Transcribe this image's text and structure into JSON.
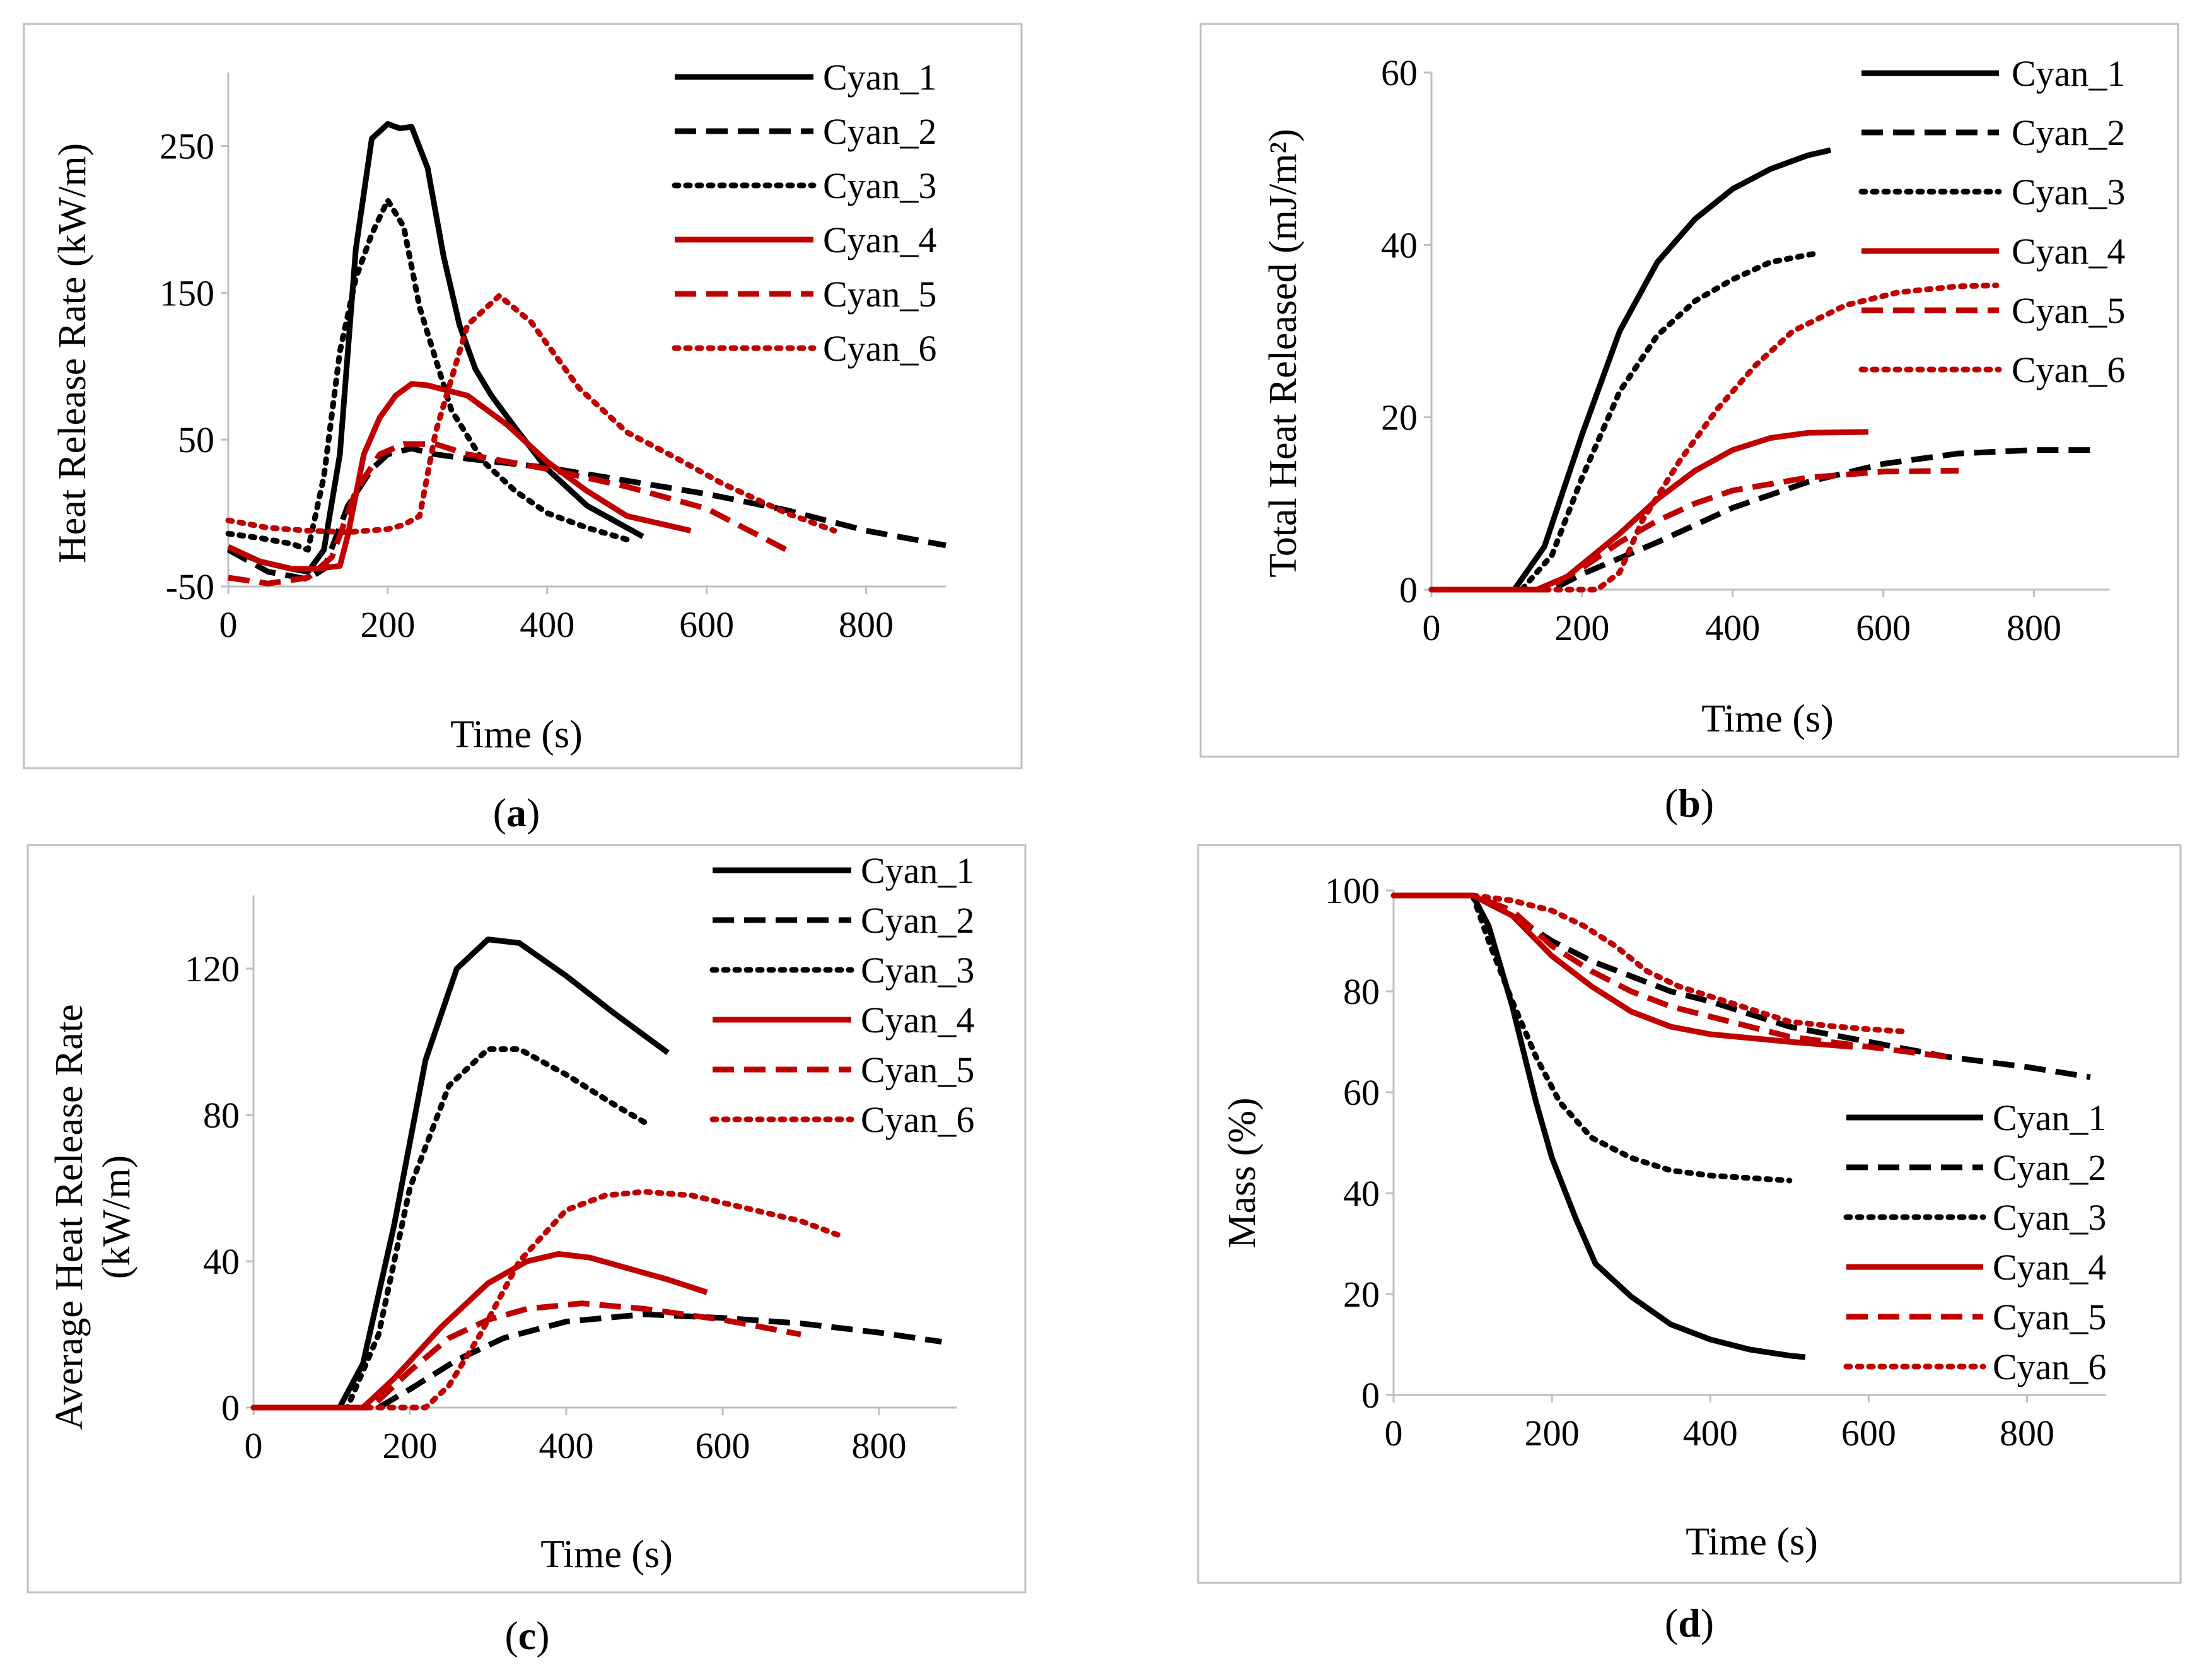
{
  "colors": {
    "black": "#000000",
    "red": "#c00000",
    "axis": "#bfbfbf",
    "frame": "#bfbfbf"
  },
  "chart_data": [
    {
      "id": "a",
      "type": "line",
      "caption": "(a)",
      "caption_letter": "a",
      "xlabel": "Time (s)",
      "ylabel": "Heat Release Rate (kW/m)",
      "xlim": [
        0,
        900
      ],
      "ylim": [
        -50,
        300
      ],
      "xticks": [
        0,
        200,
        400,
        600,
        800
      ],
      "yticks": [
        -50,
        50,
        150,
        250
      ],
      "legend_position": "top-right",
      "series": [
        {
          "name": "Cyan_1",
          "color": "#000000",
          "dash": "solid",
          "x": [
            0,
            40,
            80,
            100,
            120,
            140,
            160,
            180,
            200,
            215,
            230,
            250,
            270,
            290,
            310,
            330,
            360,
            400,
            450,
            520
          ],
          "y": [
            -24,
            -33,
            -38,
            -40,
            -25,
            40,
            180,
            255,
            265,
            262,
            263,
            235,
            175,
            128,
            98,
            80,
            58,
            30,
            5,
            -16
          ]
        },
        {
          "name": "Cyan_2",
          "color": "#000000",
          "dash": "dash",
          "x": [
            0,
            50,
            100,
            120,
            150,
            180,
            200,
            230,
            260,
            300,
            400,
            500,
            600,
            700,
            800,
            900
          ],
          "y": [
            -25,
            -40,
            -45,
            -38,
            5,
            30,
            40,
            44,
            40,
            37,
            31,
            22,
            13,
            2,
            -12,
            -22
          ]
        },
        {
          "name": "Cyan_3",
          "color": "#000000",
          "dash": "dot",
          "x": [
            0,
            40,
            80,
            100,
            120,
            140,
            160,
            180,
            200,
            220,
            240,
            280,
            320,
            360,
            400,
            450,
            500
          ],
          "y": [
            -14,
            -17,
            -21,
            -25,
            25,
            110,
            160,
            190,
            213,
            195,
            140,
            70,
            35,
            15,
            0,
            -10,
            -18
          ]
        },
        {
          "name": "Cyan_4",
          "color": "#c00000",
          "dash": "solid",
          "x": [
            0,
            40,
            80,
            110,
            140,
            150,
            170,
            190,
            210,
            230,
            250,
            300,
            350,
            400,
            450,
            500,
            580
          ],
          "y": [
            -23,
            -33,
            -38,
            -38,
            -36,
            -15,
            40,
            65,
            80,
            88,
            87,
            80,
            60,
            35,
            15,
            -2,
            -12
          ]
        },
        {
          "name": "Cyan_5",
          "color": "#c00000",
          "dash": "dash",
          "x": [
            0,
            50,
            100,
            130,
            160,
            190,
            220,
            260,
            300,
            400,
            500,
            600,
            700
          ],
          "y": [
            -44,
            -48,
            -44,
            -30,
            15,
            40,
            47,
            47,
            40,
            30,
            18,
            3,
            -25
          ]
        },
        {
          "name": "Cyan_6",
          "color": "#c00000",
          "dash": "dot",
          "x": [
            0,
            50,
            100,
            150,
            200,
            220,
            240,
            260,
            300,
            340,
            380,
            440,
            500,
            560,
            620,
            700,
            760
          ],
          "y": [
            -5,
            -10,
            -12,
            -13,
            -11,
            -8,
            -2,
            55,
            128,
            148,
            130,
            85,
            55,
            38,
            20,
            0,
            -12
          ]
        }
      ]
    },
    {
      "id": "b",
      "type": "line",
      "caption": "(b)",
      "caption_letter": "b",
      "xlabel": "Time (s)",
      "ylabel": "Total Heat Released (mJ/m²)",
      "xlim": [
        0,
        900
      ],
      "ylim": [
        0,
        60
      ],
      "xticks": [
        0,
        200,
        400,
        600,
        800
      ],
      "yticks": [
        0,
        20,
        40,
        60
      ],
      "legend_position": "top-right",
      "series": [
        {
          "name": "Cyan_1",
          "color": "#000000",
          "dash": "solid",
          "x": [
            0,
            110,
            150,
            200,
            250,
            300,
            350,
            400,
            450,
            500,
            530
          ],
          "y": [
            0,
            0,
            5,
            18,
            30,
            38,
            43,
            46.5,
            48.8,
            50.4,
            51
          ]
        },
        {
          "name": "Cyan_2",
          "color": "#000000",
          "dash": "dash",
          "x": [
            0,
            160,
            200,
            300,
            400,
            500,
            600,
            700,
            800,
            880
          ],
          "y": [
            0,
            0,
            1.8,
            5.5,
            9.5,
            12.5,
            14.6,
            15.8,
            16.2,
            16.2
          ]
        },
        {
          "name": "Cyan_3",
          "color": "#000000",
          "dash": "dot",
          "x": [
            0,
            120,
            160,
            200,
            250,
            300,
            350,
            400,
            450,
            510
          ],
          "y": [
            0,
            0,
            4,
            13,
            23,
            29.5,
            33.5,
            36,
            38,
            39
          ]
        },
        {
          "name": "Cyan_4",
          "color": "#c00000",
          "dash": "solid",
          "x": [
            0,
            140,
            180,
            250,
            300,
            350,
            400,
            450,
            500,
            580
          ],
          "y": [
            0,
            0,
            1.5,
            6.5,
            10.5,
            13.8,
            16.2,
            17.6,
            18.2,
            18.3
          ]
        },
        {
          "name": "Cyan_5",
          "color": "#c00000",
          "dash": "dash",
          "x": [
            0,
            150,
            200,
            250,
            300,
            350,
            400,
            500,
            600,
            700
          ],
          "y": [
            0,
            0,
            2.5,
            5.5,
            8,
            10,
            11.5,
            13,
            13.7,
            13.8
          ]
        },
        {
          "name": "Cyan_6",
          "color": "#c00000",
          "dash": "dot",
          "x": [
            0,
            220,
            250,
            280,
            330,
            380,
            430,
            480,
            550,
            620,
            700,
            750
          ],
          "y": [
            0,
            0,
            2,
            8,
            15,
            21,
            26,
            30,
            33,
            34.5,
            35.2,
            35.3
          ]
        }
      ]
    },
    {
      "id": "c",
      "type": "line",
      "caption": "(c)",
      "caption_letter": "c",
      "xlabel": "Time (s)",
      "ylabel_lines": [
        "Average Heat Release Rate",
        "(kW/m)"
      ],
      "xlim": [
        0,
        900
      ],
      "ylim": [
        0,
        140
      ],
      "xticks": [
        0,
        200,
        400,
        600,
        800
      ],
      "yticks": [
        0,
        40,
        80,
        120
      ],
      "legend_position": "top-right",
      "series": [
        {
          "name": "Cyan_1",
          "color": "#000000",
          "dash": "solid",
          "x": [
            0,
            110,
            140,
            180,
            220,
            260,
            300,
            340,
            400,
            460,
            530
          ],
          "y": [
            0,
            0,
            12,
            50,
            95,
            120,
            128,
            127,
            118,
            108,
            97
          ]
        },
        {
          "name": "Cyan_2",
          "color": "#000000",
          "dash": "dash",
          "x": [
            0,
            160,
            200,
            260,
            320,
            400,
            500,
            600,
            700,
            800,
            880
          ],
          "y": [
            0,
            0,
            5,
            13,
            19,
            23.5,
            25.5,
            24.5,
            23,
            20.5,
            18
          ]
        },
        {
          "name": "Cyan_3",
          "color": "#000000",
          "dash": "dot",
          "x": [
            0,
            120,
            160,
            200,
            250,
            300,
            340,
            400,
            460,
            500
          ],
          "y": [
            0,
            0,
            20,
            60,
            88,
            98,
            98,
            91,
            83,
            78
          ]
        },
        {
          "name": "Cyan_4",
          "color": "#c00000",
          "dash": "solid",
          "x": [
            0,
            140,
            180,
            240,
            300,
            350,
            390,
            430,
            480,
            530,
            580
          ],
          "y": [
            0,
            0,
            8,
            22,
            34,
            40,
            42,
            41,
            38,
            35,
            31.5
          ]
        },
        {
          "name": "Cyan_5",
          "color": "#c00000",
          "dash": "dash",
          "x": [
            0,
            150,
            200,
            250,
            300,
            350,
            420,
            500,
            600,
            700
          ],
          "y": [
            0,
            0,
            10,
            19,
            24,
            27,
            28.5,
            27,
            24,
            20
          ]
        },
        {
          "name": "Cyan_6",
          "color": "#c00000",
          "dash": "dot",
          "x": [
            0,
            220,
            250,
            290,
            340,
            400,
            450,
            500,
            560,
            620,
            700,
            750
          ],
          "y": [
            0,
            0,
            6,
            20,
            40,
            54,
            58,
            59,
            58,
            55,
            51,
            47
          ]
        }
      ]
    },
    {
      "id": "d",
      "type": "line",
      "caption": "(d)",
      "caption_letter": "d",
      "xlabel": "Time (s)",
      "ylabel": "Mass (%)",
      "xlim": [
        0,
        900
      ],
      "ylim": [
        0,
        100
      ],
      "xticks": [
        0,
        200,
        400,
        600,
        800
      ],
      "yticks": [
        0,
        20,
        40,
        60,
        80,
        100
      ],
      "legend_position": "bottom-right",
      "series": [
        {
          "name": "Cyan_1",
          "color": "#000000",
          "dash": "solid",
          "x": [
            0,
            100,
            120,
            150,
            180,
            200,
            230,
            255,
            300,
            350,
            400,
            450,
            500,
            520
          ],
          "y": [
            99,
            99,
            93,
            77,
            58,
            47,
            35,
            26,
            19.5,
            14,
            11,
            9,
            7.8,
            7.5
          ]
        },
        {
          "name": "Cyan_2",
          "color": "#000000",
          "dash": "dash",
          "x": [
            0,
            100,
            150,
            200,
            250,
            300,
            350,
            400,
            500,
            600,
            700,
            800,
            880
          ],
          "y": [
            99,
            99,
            95,
            90,
            86,
            83,
            80,
            78,
            73,
            70,
            67,
            65,
            63
          ]
        },
        {
          "name": "Cyan_3",
          "color": "#000000",
          "dash": "dot",
          "x": [
            0,
            100,
            120,
            150,
            180,
            210,
            250,
            300,
            350,
            400,
            450,
            500
          ],
          "y": [
            99,
            99,
            90,
            78,
            67,
            58,
            51,
            47,
            44.5,
            43.5,
            43,
            42.5
          ]
        },
        {
          "name": "Cyan_4",
          "color": "#c00000",
          "dash": "solid",
          "x": [
            0,
            100,
            150,
            200,
            250,
            300,
            350,
            400,
            500,
            580
          ],
          "y": [
            99,
            99,
            95,
            87,
            81,
            76,
            73,
            71.5,
            70,
            69
          ]
        },
        {
          "name": "Cyan_5",
          "color": "#c00000",
          "dash": "dash",
          "x": [
            0,
            100,
            150,
            200,
            250,
            300,
            350,
            400,
            500,
            600,
            700
          ],
          "y": [
            99,
            99,
            96,
            89,
            84,
            80,
            77,
            75,
            71,
            69,
            67
          ]
        },
        {
          "name": "Cyan_6",
          "color": "#c00000",
          "dash": "dot",
          "x": [
            0,
            100,
            150,
            200,
            240,
            280,
            320,
            360,
            400,
            450,
            500,
            560,
            600,
            650
          ],
          "y": [
            99,
            99,
            98,
            96,
            93,
            89,
            84,
            81,
            79,
            76.5,
            74,
            73,
            72.5,
            72
          ]
        }
      ]
    }
  ]
}
